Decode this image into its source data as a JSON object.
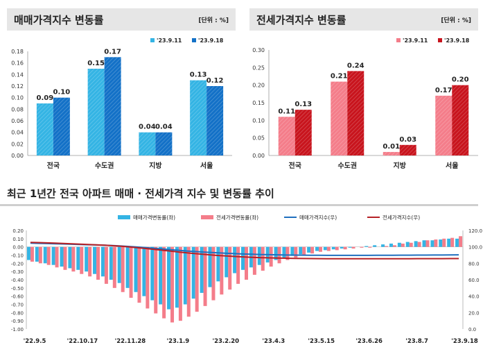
{
  "colors": {
    "sale_prev": "#34b4e4",
    "sale_curr": "#1371c7",
    "jeonse_prev": "#f47d8a",
    "jeonse_curr": "#c8141d",
    "sale_index_line": "#1f6fbf",
    "jeonse_index_line": "#b52025"
  },
  "panels": {
    "sale": {
      "title": "매매가격지수 변동률",
      "unit": "[단위 : %]"
    },
    "jeonse": {
      "title": "전세가격지수 변동률",
      "unit": "[단위 : %]"
    }
  },
  "section": {
    "title": "최근 1년간 전국 아파트 매매 · 전세가격 지수 및 변동률 추이"
  },
  "chart_data": [
    {
      "type": "bar",
      "title": "매매가격지수 변동률",
      "categories": [
        "전국",
        "수도권",
        "지방",
        "서울"
      ],
      "series": [
        {
          "name": "'23.9.11",
          "values": [
            0.09,
            0.15,
            0.04,
            0.13
          ]
        },
        {
          "name": "'23.9.18",
          "values": [
            0.1,
            0.17,
            0.04,
            0.12
          ]
        }
      ],
      "ylim": [
        0,
        0.18
      ],
      "yticks": [
        "0.00",
        "0.02",
        "0.04",
        "0.06",
        "0.08",
        "0.10",
        "0.12",
        "0.14",
        "0.16",
        "0.18"
      ],
      "legend": "top-right"
    },
    {
      "type": "bar",
      "title": "전세가격지수 변동률",
      "categories": [
        "전국",
        "수도권",
        "지방",
        "서울"
      ],
      "series": [
        {
          "name": "'23.9.11",
          "values": [
            0.11,
            0.21,
            0.01,
            0.17
          ]
        },
        {
          "name": "'23.9.18",
          "values": [
            0.13,
            0.24,
            0.03,
            0.2
          ]
        }
      ],
      "ylim": [
        0,
        0.3
      ],
      "yticks": [
        "0.00",
        "0.05",
        "0.10",
        "0.15",
        "0.20",
        "0.25",
        "0.30"
      ],
      "legend": "top-right"
    },
    {
      "type": "bar",
      "title": "최근 1년간 전국 아파트 매매 · 전세가격 지수 및 변동률 추이",
      "x_tick_labels": [
        "'22.9.5",
        "'22.10.17",
        "'22.11.28",
        "'23.1.9",
        "'23.2.20",
        "'23.4.3",
        "'23.5.15",
        "'23.6.26",
        "'23.8.7",
        "'23.9.18"
      ],
      "ylim_left": [
        -1.0,
        0.2
      ],
      "ylim_right": [
        0.0,
        120.0
      ],
      "yticks_left": [
        "-1.00",
        "-0.90",
        "-0.80",
        "-0.70",
        "-0.60",
        "-0.50",
        "-0.40",
        "-0.30",
        "-0.20",
        "-0.10",
        "0.00",
        "0.10",
        "0.20"
      ],
      "yticks_right": [
        "0.0",
        "20.0",
        "40.0",
        "60.0",
        "80.0",
        "100.0",
        "120.0"
      ],
      "legend": "top",
      "series": [
        {
          "name": "매매가격변동률(좌)",
          "axis": "left",
          "kind": "bar",
          "values": [
            -0.16,
            -0.18,
            -0.2,
            -0.22,
            -0.24,
            -0.26,
            -0.28,
            -0.3,
            -0.33,
            -0.36,
            -0.4,
            -0.44,
            -0.5,
            -0.55,
            -0.6,
            -0.65,
            -0.7,
            -0.76,
            -0.74,
            -0.7,
            -0.63,
            -0.56,
            -0.49,
            -0.42,
            -0.37,
            -0.32,
            -0.28,
            -0.25,
            -0.22,
            -0.19,
            -0.16,
            -0.13,
            -0.11,
            -0.09,
            -0.07,
            -0.05,
            -0.04,
            -0.03,
            -0.02,
            -0.01,
            0.0,
            0.01,
            0.02,
            0.03,
            0.04,
            0.05,
            0.06,
            0.07,
            0.08,
            0.08,
            0.09,
            0.1,
            0.1
          ]
        },
        {
          "name": "전세가격변동률(좌)",
          "axis": "left",
          "kind": "bar",
          "values": [
            -0.18,
            -0.2,
            -0.22,
            -0.25,
            -0.28,
            -0.3,
            -0.33,
            -0.36,
            -0.4,
            -0.45,
            -0.5,
            -0.55,
            -0.62,
            -0.68,
            -0.75,
            -0.81,
            -0.87,
            -0.92,
            -0.9,
            -0.85,
            -0.79,
            -0.72,
            -0.65,
            -0.58,
            -0.52,
            -0.45,
            -0.4,
            -0.34,
            -0.29,
            -0.24,
            -0.2,
            -0.16,
            -0.13,
            -0.1,
            -0.08,
            -0.06,
            -0.05,
            -0.04,
            -0.03,
            -0.02,
            -0.01,
            -0.01,
            0.0,
            0.01,
            0.02,
            0.04,
            0.05,
            0.06,
            0.08,
            0.09,
            0.1,
            0.11,
            0.13
          ]
        },
        {
          "name": "매매가격지수(우)",
          "axis": "right",
          "kind": "line",
          "values": [
            104.5,
            104.3,
            104.0,
            103.7,
            103.5,
            103.2,
            102.9,
            102.6,
            102.3,
            102.0,
            101.6,
            101.1,
            100.5,
            99.8,
            99.1,
            98.3,
            97.5,
            96.6,
            95.8,
            95.0,
            94.3,
            93.7,
            93.1,
            92.6,
            92.1,
            91.7,
            91.3,
            91.0,
            90.7,
            90.5,
            90.3,
            90.1,
            90.0,
            89.9,
            89.8,
            89.8,
            89.7,
            89.7,
            89.7,
            89.7,
            89.7,
            89.7,
            89.8,
            89.8,
            89.8,
            89.9,
            89.9,
            90.0,
            90.0,
            90.1,
            90.1,
            90.2,
            90.3
          ]
        },
        {
          "name": "전세가격지수(우)",
          "axis": "right",
          "kind": "line",
          "values": [
            105.5,
            105.2,
            104.9,
            104.5,
            104.1,
            103.7,
            103.3,
            102.9,
            102.5,
            102.0,
            101.4,
            100.7,
            99.9,
            99.0,
            98.0,
            97.0,
            95.9,
            94.8,
            93.7,
            92.7,
            91.8,
            90.9,
            90.1,
            89.4,
            88.8,
            88.2,
            87.7,
            87.3,
            86.9,
            86.6,
            86.4,
            86.2,
            86.0,
            85.9,
            85.8,
            85.7,
            85.6,
            85.6,
            85.6,
            85.6,
            85.6,
            85.6,
            85.6,
            85.6,
            85.6,
            85.6,
            85.6,
            85.7,
            85.7,
            85.7,
            85.7,
            85.8,
            85.8
          ]
        }
      ]
    }
  ]
}
